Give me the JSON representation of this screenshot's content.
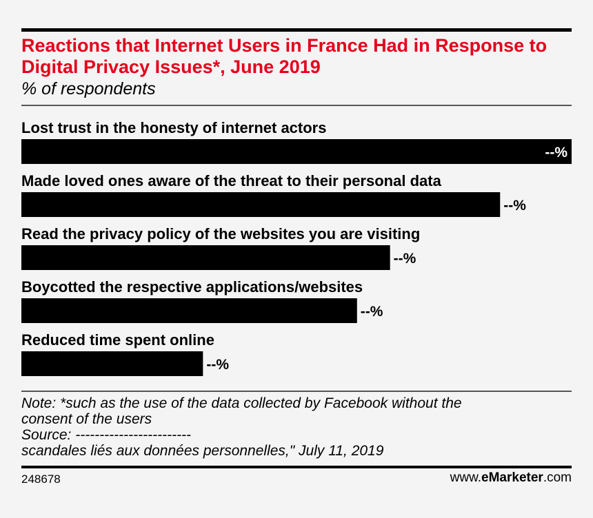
{
  "header": {
    "title": "Reactions that Internet Users in France Had in Response to Digital Privacy Issues*, June 2019",
    "subtitle": "% of respondents"
  },
  "chart_data": {
    "type": "bar",
    "orientation": "horizontal",
    "title": "Reactions that Internet Users in France Had in Response to Digital Privacy Issues*, June 2019",
    "subtitle": "% of respondents",
    "categories": [
      "Lost trust in the honesty of internet actors",
      "Made loved ones aware of the threat to their personal data",
      "Read the privacy policy of the websites you are visiting",
      "Boycotted the respective applications/websites",
      "Reduced time spent online"
    ],
    "values": [
      100,
      87,
      67,
      61,
      33
    ],
    "value_labels": [
      "--%",
      "--%",
      "--%",
      "--%",
      "--%"
    ],
    "xlim": [
      0,
      100
    ],
    "grid": false,
    "legend": "none",
    "bar_color": "#000000"
  },
  "note": {
    "line1": "Note: *such as the use of the data collected by Facebook without the",
    "line2": "consent of the users",
    "source": "Source: ------------------------",
    "source_cont": "scandales liés aux données personnelles,\" July 11, 2019"
  },
  "footer": {
    "chart_id": "248678",
    "brand_prefix": "www.",
    "brand_bold": "eMarketer",
    "brand_suffix": ".com"
  },
  "colors": {
    "title": "#e4001b",
    "bars": "#000000",
    "background": "#f4f4f4"
  }
}
